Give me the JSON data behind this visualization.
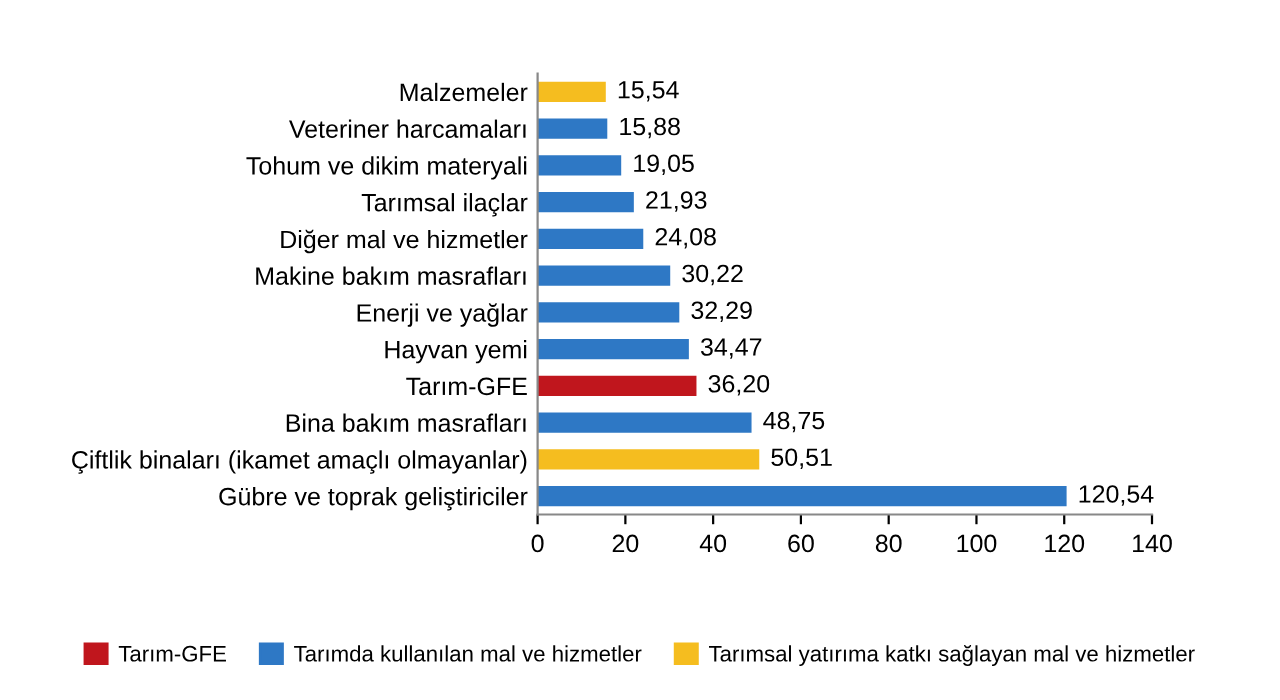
{
  "chart_data": {
    "type": "bar",
    "orientation": "horizontal",
    "categories": [
      "Malzemeler",
      "Veteriner harcamaları",
      "Tohum ve dikim materyali",
      "Tarımsal ilaçlar",
      "Diğer mal ve hizmetler",
      "Makine bakım masrafları",
      "Enerji ve yağlar",
      "Hayvan yemi",
      "Tarım-GFE",
      "Bina bakım masrafları",
      "Çiftlik binaları (ikamet amaçlı olmayanlar)",
      "Gübre ve toprak geliştiriciler"
    ],
    "series": [
      {
        "name": "Tarım-GFE",
        "color": "#c0161d",
        "values": [
          null,
          null,
          null,
          null,
          null,
          null,
          null,
          null,
          36.2,
          null,
          null,
          null
        ],
        "value_labels": [
          null,
          null,
          null,
          null,
          null,
          null,
          null,
          null,
          "36,20",
          null,
          null,
          null
        ]
      },
      {
        "name": "Tarımda kullanılan mal ve hizmetler",
        "color": "#2e78c5",
        "values": [
          null,
          15.88,
          19.05,
          21.93,
          24.08,
          30.22,
          32.29,
          34.47,
          null,
          48.75,
          null,
          120.54
        ],
        "value_labels": [
          null,
          "15,88",
          "19,05",
          "21,93",
          "24,08",
          "30,22",
          "32,29",
          "34,47",
          null,
          "48,75",
          null,
          "120,54"
        ]
      },
      {
        "name": "Tarımsal yatırıma katkı sağlayan mal ve hizmetler",
        "color": "#f5bd1f",
        "values": [
          15.54,
          null,
          null,
          null,
          null,
          null,
          null,
          null,
          null,
          null,
          50.51,
          null
        ],
        "value_labels": [
          "15,54",
          null,
          null,
          null,
          null,
          null,
          null,
          null,
          null,
          null,
          "50,51",
          null
        ]
      }
    ],
    "xlim": [
      0,
      140
    ],
    "xticks": [
      0,
      20,
      40,
      60,
      80,
      100,
      120,
      140
    ],
    "grid": false,
    "legend": "bottom"
  }
}
